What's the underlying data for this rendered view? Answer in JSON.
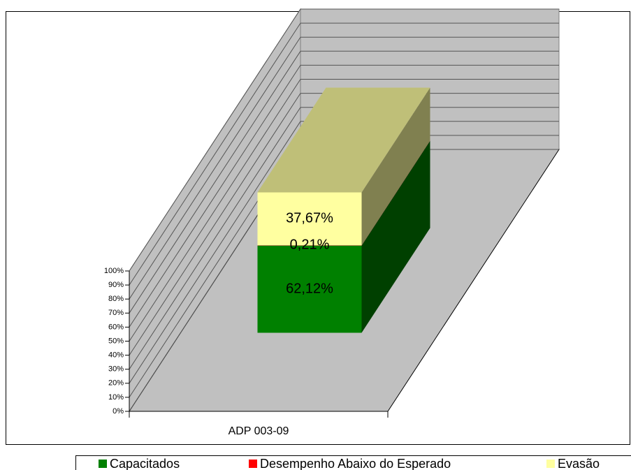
{
  "chart_data": {
    "type": "bar",
    "stacked": true,
    "three_d": true,
    "categories": [
      "ADP 003-09"
    ],
    "series": [
      {
        "name": "Capacitados",
        "color": "#008000",
        "values": [
          62.12
        ],
        "value_labels": [
          "62,12%"
        ]
      },
      {
        "name": "Desempenho Abaixo do Esperado",
        "color": "#ff0000",
        "values": [
          0.21
        ],
        "value_labels": [
          "0,21%"
        ]
      },
      {
        "name": "Evasão",
        "color": "#ffffa0",
        "values": [
          37.67
        ],
        "value_labels": [
          "37,67%"
        ]
      }
    ],
    "ylim": [
      0,
      100
    ],
    "yticks": [
      {
        "value": 0,
        "label": "0%"
      },
      {
        "value": 10,
        "label": "10%"
      },
      {
        "value": 20,
        "label": "20%"
      },
      {
        "value": 30,
        "label": "30%"
      },
      {
        "value": 40,
        "label": "40%"
      },
      {
        "value": 50,
        "label": "50%"
      },
      {
        "value": 60,
        "label": "60%"
      },
      {
        "value": 70,
        "label": "70%"
      },
      {
        "value": 80,
        "label": "80%"
      },
      {
        "value": 90,
        "label": "90%"
      },
      {
        "value": 100,
        "label": "100%"
      }
    ],
    "grid": true,
    "legend": "bottom"
  }
}
